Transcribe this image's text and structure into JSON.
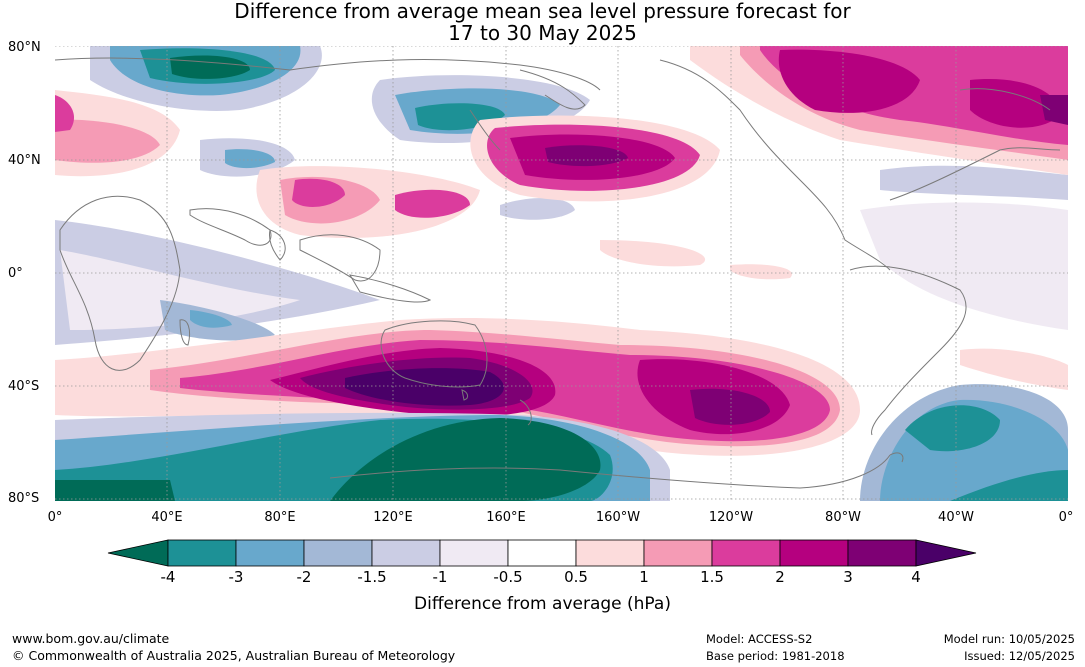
{
  "title_line1": "Difference from average mean sea level pressure forecast for",
  "title_line2": "17 to 30 May 2025",
  "lat_labels": [
    "80°N",
    "40°N",
    "0°",
    "40°S",
    "80°S"
  ],
  "lon_labels": [
    "0°",
    "40°E",
    "80°E",
    "120°E",
    "160°E",
    "160°W",
    "120°W",
    "80°W",
    "40°W",
    "0°"
  ],
  "colorbar": {
    "label": "Difference from average (hPa)",
    "ticks": [
      "-4",
      "-3",
      "-2",
      "-1.5",
      "-1",
      "-0.5",
      "0.5",
      "1",
      "1.5",
      "2",
      "3",
      "4"
    ],
    "colors": [
      "#006b57",
      "#1d9196",
      "#68a8cc",
      "#a3b8d6",
      "#cbcde4",
      "#f0eaf3",
      "#ffffff",
      "#fcdcdc",
      "#f59bb5",
      "#db3c9d",
      "#b5007f",
      "#7e0074",
      "#4a0068"
    ]
  },
  "footer": {
    "url": "www.bom.gov.au/climate",
    "copyright": "© Commonwealth of Australia 2025, Australian Bureau of Meteorology",
    "model": "Model: ACCESS-S2",
    "base_period": "Base period: 1981-2018",
    "model_run": "Model run: 10/05/2025",
    "issued": "Issued: 12/05/2025"
  }
}
